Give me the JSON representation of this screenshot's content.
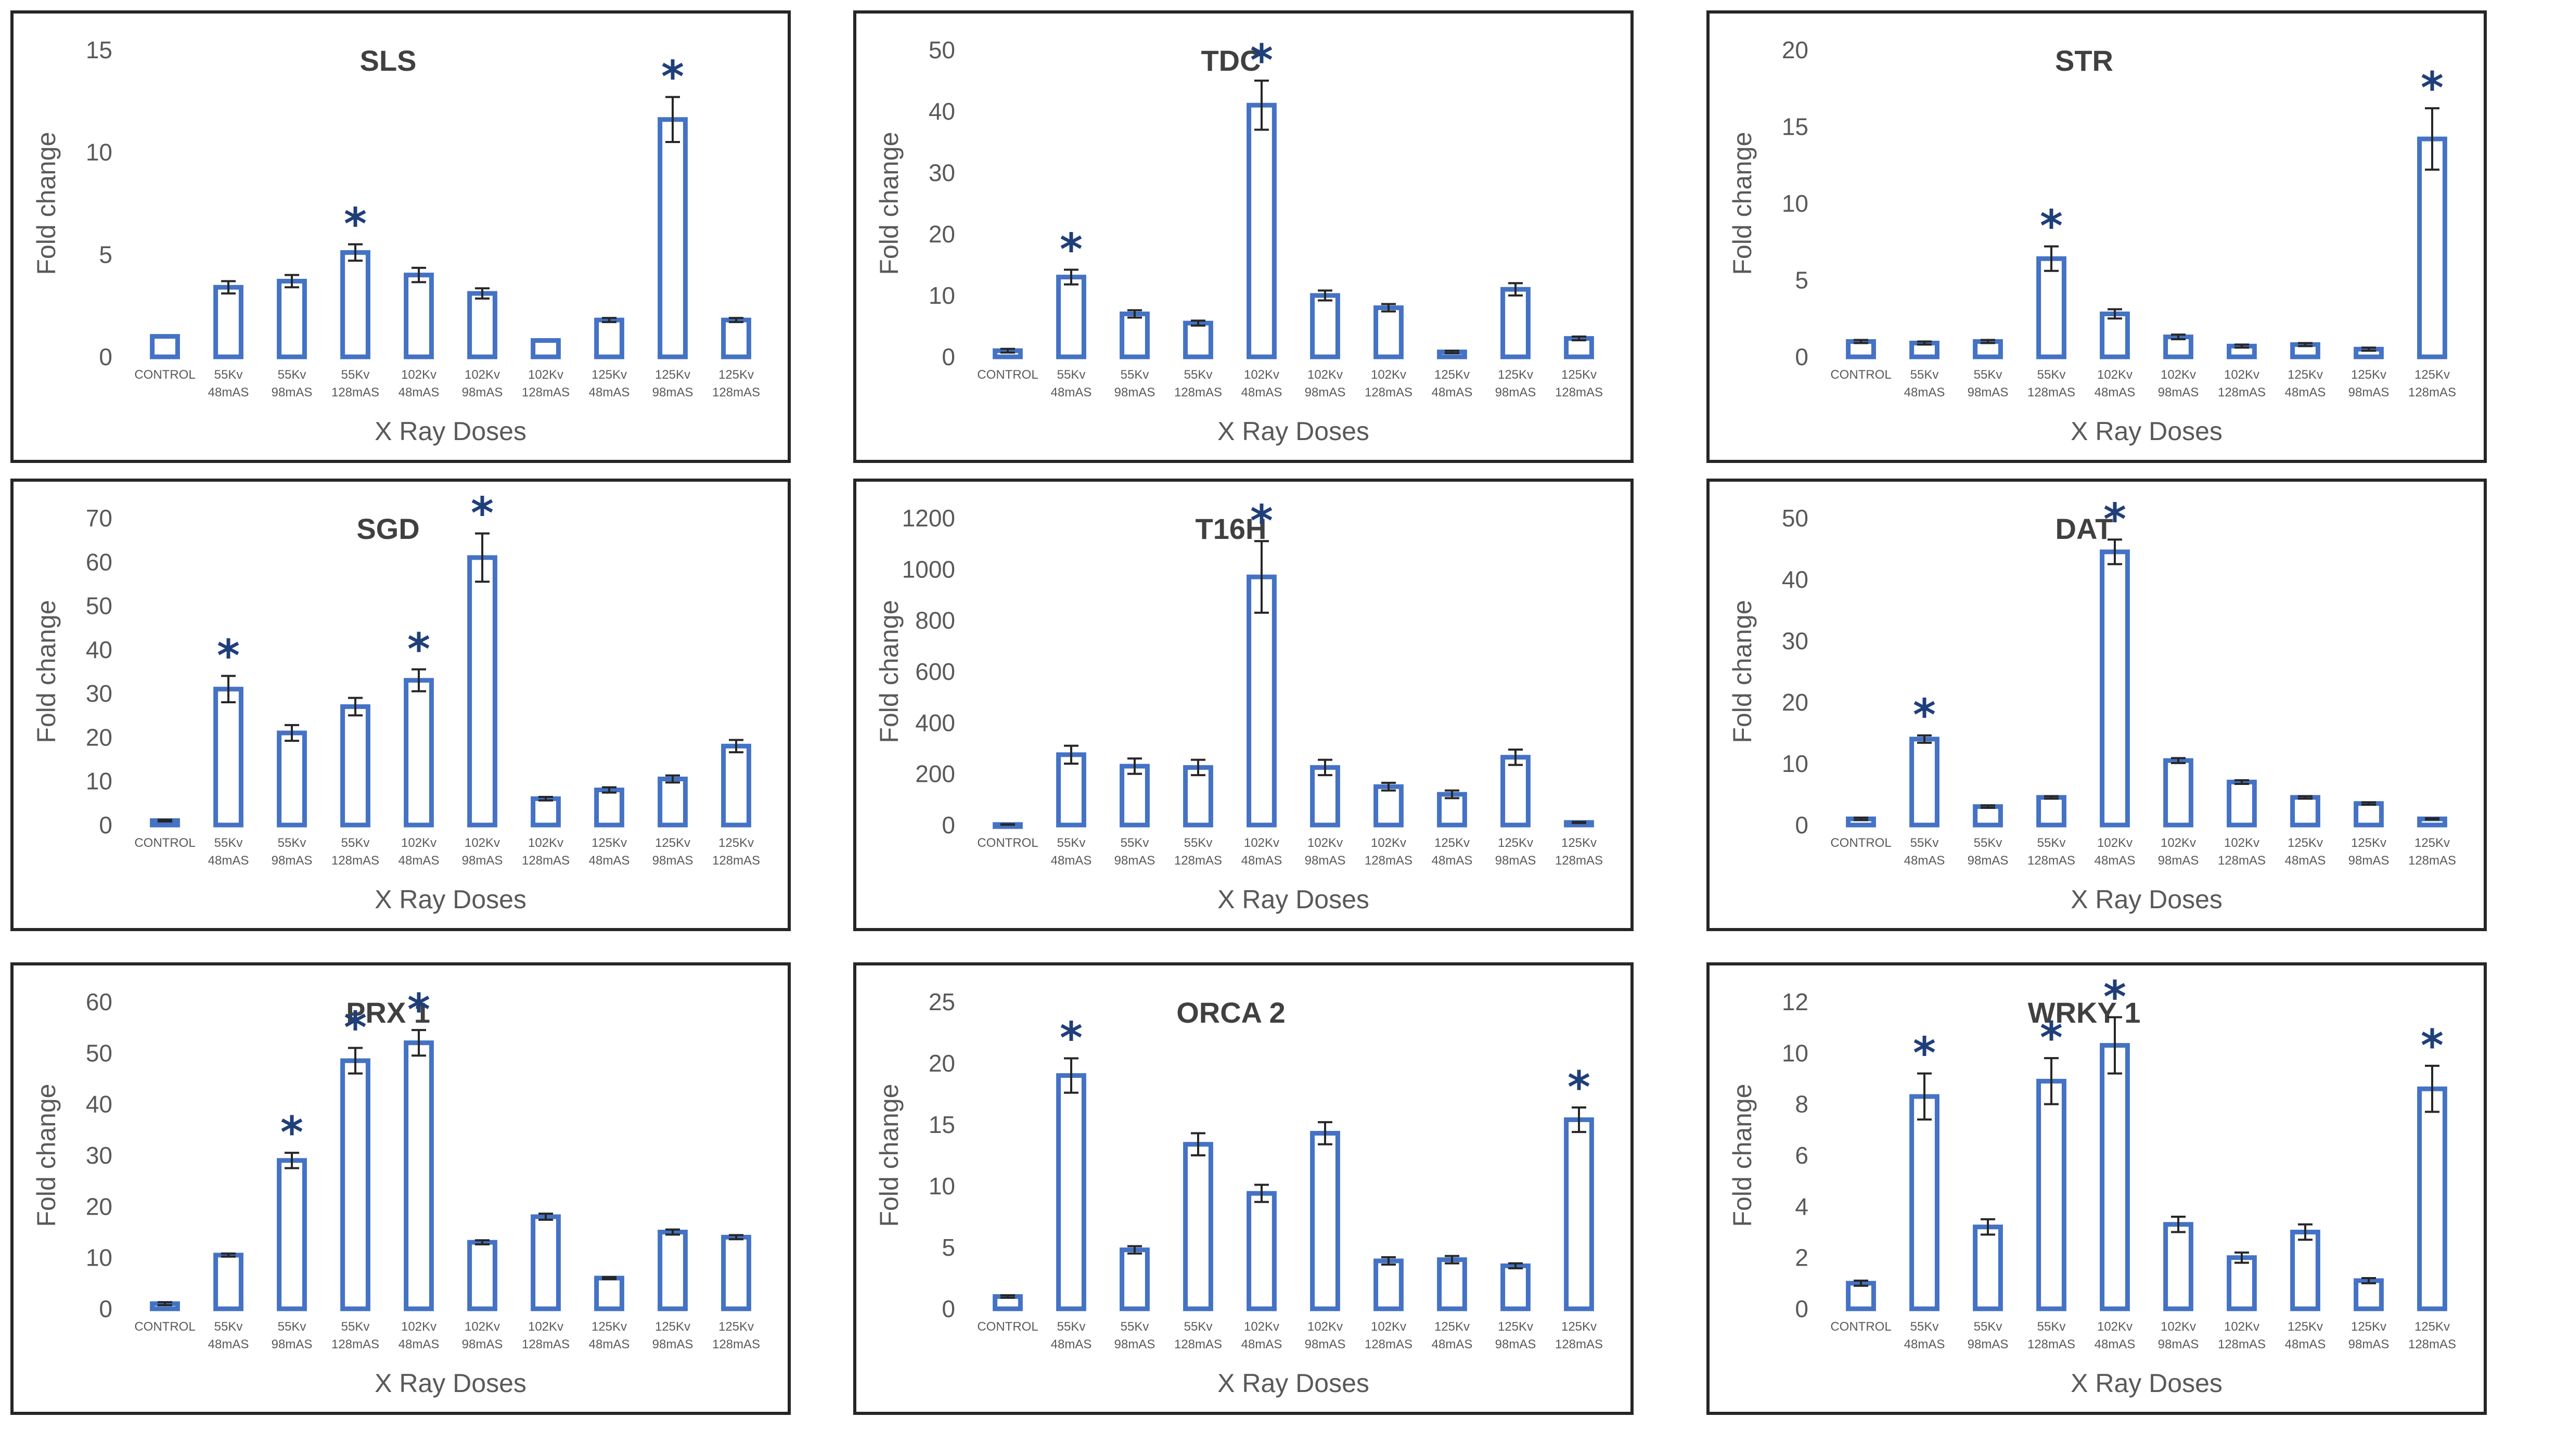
{
  "chart_data": [
    {
      "type": "bar",
      "title": "SLS",
      "xlabel": "X Ray Doses",
      "ylabel": "Fold change",
      "ylim": [
        0,
        15
      ],
      "yticks": [
        0,
        5,
        10,
        15
      ],
      "categories": [
        [
          "CONTROL"
        ],
        [
          "55Kv",
          "48mAS"
        ],
        [
          "55Kv",
          "98mAS"
        ],
        [
          "55Kv",
          "128mAS"
        ],
        [
          "102Kv",
          "48mAS"
        ],
        [
          "102Kv",
          "98mAS"
        ],
        [
          "102Kv",
          "128mAS"
        ],
        [
          "125Kv",
          "48mAS"
        ],
        [
          "125Kv",
          "98mAS"
        ],
        [
          "125Kv",
          "128mAS"
        ]
      ],
      "values": [
        1.0,
        3.4,
        3.7,
        5.1,
        4.0,
        3.1,
        0.8,
        1.8,
        11.6,
        1.8
      ],
      "errors": [
        0,
        0.3,
        0.3,
        0.4,
        0.35,
        0.25,
        0,
        0.1,
        1.1,
        0.1
      ],
      "significant": [
        "",
        "",
        "",
        "*",
        "",
        "",
        "",
        "",
        "*",
        ""
      ],
      "grid": false
    },
    {
      "type": "bar",
      "title": "TDC",
      "xlabel": "X Ray Doses",
      "ylabel": "Fold change",
      "ylim": [
        0,
        50
      ],
      "yticks": [
        0,
        10,
        20,
        30,
        40,
        50
      ],
      "categories": [
        [
          "CONTROL"
        ],
        [
          "55Kv",
          "48mAS"
        ],
        [
          "55Kv",
          "98mAS"
        ],
        [
          "55Kv",
          "128mAS"
        ],
        [
          "102Kv",
          "48mAS"
        ],
        [
          "102Kv",
          "98mAS"
        ],
        [
          "102Kv",
          "128mAS"
        ],
        [
          "125Kv",
          "48mAS"
        ],
        [
          "125Kv",
          "98mAS"
        ],
        [
          "125Kv",
          "128mAS"
        ]
      ],
      "values": [
        1.0,
        13.0,
        7.0,
        5.5,
        41.0,
        10.0,
        8.0,
        0.8,
        11.0,
        3.0
      ],
      "errors": [
        0.3,
        1.2,
        0.6,
        0.4,
        4.0,
        0.8,
        0.6,
        0.2,
        1.0,
        0.3
      ],
      "significant": [
        "",
        "*",
        "",
        "",
        "*",
        "",
        "",
        "",
        "",
        ""
      ],
      "grid": false
    },
    {
      "type": "bar",
      "title": "STR",
      "xlabel": "X Ray Doses",
      "ylabel": "Fold change",
      "ylim": [
        0,
        20
      ],
      "yticks": [
        0,
        5,
        10,
        15,
        20
      ],
      "categories": [
        [
          "CONTROL"
        ],
        [
          "55Kv",
          "48mAS"
        ],
        [
          "55Kv",
          "98mAS"
        ],
        [
          "55Kv",
          "128mAS"
        ],
        [
          "102Kv",
          "48mAS"
        ],
        [
          "102Kv",
          "98mAS"
        ],
        [
          "102Kv",
          "128mAS"
        ],
        [
          "125Kv",
          "48mAS"
        ],
        [
          "125Kv",
          "98mAS"
        ],
        [
          "125Kv",
          "128mAS"
        ]
      ],
      "values": [
        1.0,
        0.9,
        1.0,
        6.4,
        2.8,
        1.3,
        0.7,
        0.8,
        0.5,
        14.2
      ],
      "errors": [
        0.1,
        0.1,
        0.1,
        0.8,
        0.3,
        0.15,
        0.1,
        0.1,
        0.1,
        2.0
      ],
      "significant": [
        "",
        "",
        "",
        "*",
        "",
        "",
        "",
        "",
        "",
        "*"
      ],
      "grid": false
    },
    {
      "type": "bar",
      "title": "SGD",
      "xlabel": "X Ray Doses",
      "ylabel": "Fold change",
      "ylim": [
        0,
        70
      ],
      "yticks": [
        0,
        10,
        20,
        30,
        40,
        50,
        60,
        70
      ],
      "categories": [
        [
          "CONTROL"
        ],
        [
          "55Kv",
          "48mAS"
        ],
        [
          "55Kv",
          "98mAS"
        ],
        [
          "55Kv",
          "128mAS"
        ],
        [
          "102Kv",
          "48mAS"
        ],
        [
          "102Kv",
          "98mAS"
        ],
        [
          "102Kv",
          "128mAS"
        ],
        [
          "125Kv",
          "48mAS"
        ],
        [
          "125Kv",
          "98mAS"
        ],
        [
          "125Kv",
          "128mAS"
        ]
      ],
      "values": [
        1.0,
        31.0,
        21.0,
        27.0,
        33.0,
        61.0,
        6.0,
        8.0,
        10.5,
        18.0
      ],
      "errors": [
        0.2,
        3.0,
        1.8,
        2.0,
        2.5,
        5.5,
        0.4,
        0.6,
        0.8,
        1.4
      ],
      "significant": [
        "",
        "*",
        "",
        "",
        "*",
        "*",
        "",
        "",
        "",
        ""
      ],
      "grid": false
    },
    {
      "type": "bar",
      "title": "T16H",
      "xlabel": "X Ray Doses",
      "ylabel": "Fold change",
      "ylim": [
        0,
        1200
      ],
      "yticks": [
        0,
        200,
        400,
        600,
        800,
        1000,
        1200
      ],
      "categories": [
        [
          "CONTROL"
        ],
        [
          "55Kv",
          "48mAS"
        ],
        [
          "55Kv",
          "98mAS"
        ],
        [
          "55Kv",
          "128mAS"
        ],
        [
          "102Kv",
          "48mAS"
        ],
        [
          "102Kv",
          "98mAS"
        ],
        [
          "102Kv",
          "128mAS"
        ],
        [
          "125Kv",
          "48mAS"
        ],
        [
          "125Kv",
          "98mAS"
        ],
        [
          "125Kv",
          "128mAS"
        ]
      ],
      "values": [
        2,
        275,
        230,
        225,
        970,
        225,
        150,
        120,
        265,
        10
      ],
      "errors": [
        1,
        35,
        30,
        30,
        140,
        30,
        15,
        15,
        30,
        2
      ],
      "significant": [
        "",
        "",
        "",
        "",
        "*",
        "",
        "",
        "",
        "",
        ""
      ],
      "grid": false
    },
    {
      "type": "bar",
      "title": "DAT",
      "xlabel": "X Ray Doses",
      "ylabel": "Fold change",
      "ylim": [
        0,
        50
      ],
      "yticks": [
        0,
        10,
        20,
        30,
        40,
        50
      ],
      "categories": [
        [
          "CONTROL"
        ],
        [
          "55Kv",
          "48mAS"
        ],
        [
          "55Kv",
          "98mAS"
        ],
        [
          "55Kv",
          "128mAS"
        ],
        [
          "102Kv",
          "48mAS"
        ],
        [
          "102Kv",
          "98mAS"
        ],
        [
          "102Kv",
          "128mAS"
        ],
        [
          "125Kv",
          "48mAS"
        ],
        [
          "125Kv",
          "98mAS"
        ],
        [
          "125Kv",
          "128mAS"
        ]
      ],
      "values": [
        1.0,
        14.0,
        3.0,
        4.5,
        44.5,
        10.5,
        7.0,
        4.5,
        3.5,
        1.0
      ],
      "errors": [
        0.2,
        0.6,
        0.2,
        0.2,
        2.0,
        0.4,
        0.3,
        0.2,
        0.2,
        0.1
      ],
      "significant": [
        "",
        "*",
        "",
        "",
        "*",
        "",
        "",
        "",
        "",
        ""
      ],
      "grid": false
    },
    {
      "type": "bar",
      "title": "PRX 1",
      "xlabel": "X Ray Doses",
      "ylabel": "Fold change",
      "ylim": [
        0,
        60
      ],
      "yticks": [
        0,
        10,
        20,
        30,
        40,
        50,
        60
      ],
      "categories": [
        [
          "CONTROL"
        ],
        [
          "55Kv",
          "48mAS"
        ],
        [
          "55Kv",
          "98mAS"
        ],
        [
          "55Kv",
          "128mAS"
        ],
        [
          "102Kv",
          "48mAS"
        ],
        [
          "102Kv",
          "98mAS"
        ],
        [
          "102Kv",
          "128mAS"
        ],
        [
          "125Kv",
          "48mAS"
        ],
        [
          "125Kv",
          "98mAS"
        ],
        [
          "125Kv",
          "128mAS"
        ]
      ],
      "values": [
        1.0,
        10.5,
        29.0,
        48.5,
        52.0,
        13.0,
        18.0,
        6.0,
        15.0,
        14.0
      ],
      "errors": [
        0.3,
        0.3,
        1.5,
        2.5,
        2.5,
        0.4,
        0.6,
        0.2,
        0.5,
        0.4
      ],
      "significant": [
        "",
        "",
        "*",
        "*",
        "*",
        "",
        "",
        "",
        "",
        ""
      ],
      "grid": false
    },
    {
      "type": "bar",
      "title": "ORCA 2",
      "xlabel": "X Ray Doses",
      "ylabel": "Fold change",
      "ylim": [
        0,
        25
      ],
      "yticks": [
        0,
        5,
        10,
        15,
        20,
        25
      ],
      "categories": [
        [
          "CONTROL"
        ],
        [
          "55Kv",
          "48mAS"
        ],
        [
          "55Kv",
          "98mAS"
        ],
        [
          "55Kv",
          "128mAS"
        ],
        [
          "102Kv",
          "48mAS"
        ],
        [
          "102Kv",
          "98mAS"
        ],
        [
          "102Kv",
          "128mAS"
        ],
        [
          "125Kv",
          "48mAS"
        ],
        [
          "125Kv",
          "98mAS"
        ],
        [
          "125Kv",
          "128mAS"
        ]
      ],
      "values": [
        1.0,
        19.0,
        4.8,
        13.4,
        9.4,
        14.3,
        3.9,
        4.0,
        3.5,
        15.4
      ],
      "errors": [
        0.1,
        1.4,
        0.3,
        0.9,
        0.7,
        0.9,
        0.3,
        0.3,
        0.2,
        1.0
      ],
      "significant": [
        "",
        "*",
        "",
        "",
        "",
        "",
        "",
        "",
        "",
        "*"
      ],
      "grid": false
    },
    {
      "type": "bar",
      "title": "WRKY 1",
      "xlabel": "X Ray Doses",
      "ylabel": "Fold change",
      "ylim": [
        0,
        12
      ],
      "yticks": [
        0,
        2,
        4,
        6,
        8,
        10,
        12
      ],
      "categories": [
        [
          "CONTROL"
        ],
        [
          "55Kv",
          "48mAS"
        ],
        [
          "55Kv",
          "98mAS"
        ],
        [
          "55Kv",
          "128mAS"
        ],
        [
          "102Kv",
          "48mAS"
        ],
        [
          "102Kv",
          "98mAS"
        ],
        [
          "102Kv",
          "128mAS"
        ],
        [
          "125Kv",
          "48mAS"
        ],
        [
          "125Kv",
          "98mAS"
        ],
        [
          "125Kv",
          "128mAS"
        ]
      ],
      "values": [
        1.0,
        8.3,
        3.2,
        8.9,
        10.3,
        3.3,
        2.0,
        3.0,
        1.1,
        8.6
      ],
      "errors": [
        0.1,
        0.9,
        0.3,
        0.9,
        1.1,
        0.3,
        0.2,
        0.3,
        0.1,
        0.9
      ],
      "significant": [
        "",
        "*",
        "",
        "*",
        "*",
        "",
        "",
        "",
        "",
        "*"
      ],
      "grid": false
    }
  ]
}
